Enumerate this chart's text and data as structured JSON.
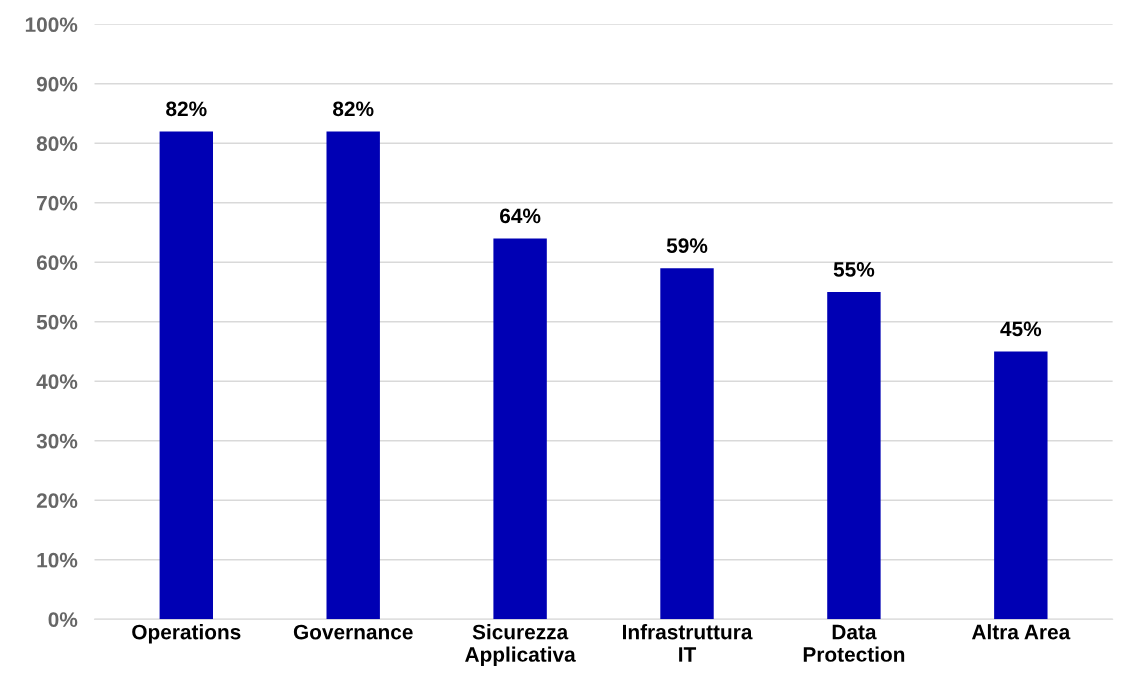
{
  "chart_data": {
    "type": "bar",
    "categories": [
      "Operations",
      "Governance",
      "Sicurezza\nApplicativa",
      "Infrastruttura\nIT",
      "Data\nProtection",
      "Altra Area"
    ],
    "values": [
      82,
      82,
      64,
      59,
      55,
      45
    ],
    "color": "#0000b4",
    "value_labels": [
      "82%",
      "82%",
      "64%",
      "59%",
      "55%",
      "45%"
    ],
    "ylim": [
      0,
      100
    ],
    "yticks": [
      {
        "value": 0,
        "label": "0%"
      },
      {
        "value": 10,
        "label": "10%"
      },
      {
        "value": 20,
        "label": "20%"
      },
      {
        "value": 30,
        "label": "30%"
      },
      {
        "value": 40,
        "label": "40%"
      },
      {
        "value": 50,
        "label": "50%"
      },
      {
        "value": 60,
        "label": "60%"
      },
      {
        "value": 70,
        "label": "70%"
      },
      {
        "value": 80,
        "label": "80%"
      },
      {
        "value": 90,
        "label": "90%"
      },
      {
        "value": 100,
        "label": "100%"
      }
    ],
    "grid": "y"
  }
}
